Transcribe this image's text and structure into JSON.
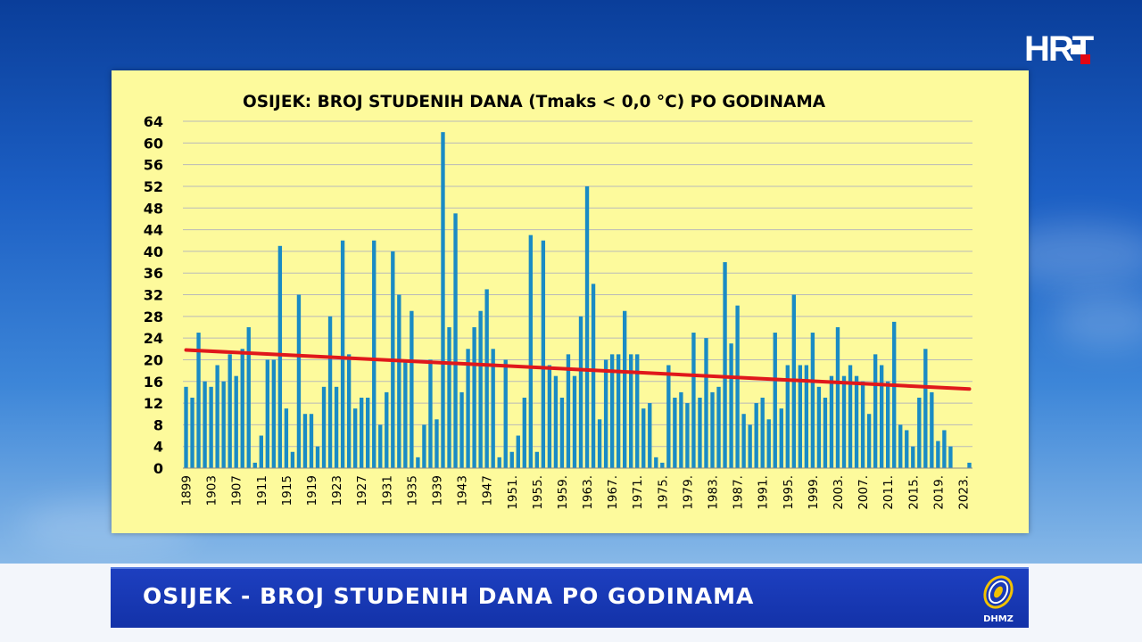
{
  "broadcaster": {
    "logo_text": "HRT"
  },
  "lower_third": {
    "caption": "OSIJEK - BROJ STUDENIH DANA PO GODINAMA",
    "partner_logo_text": "DHMZ"
  },
  "colors": {
    "bar": "#1a8bc4",
    "trend": "#e0181b",
    "panel": "#fdfa9c",
    "lower_third": "#1332a8"
  },
  "chart_data": {
    "type": "bar",
    "title": "OSIJEK: BROJ STUDENIH DANA (Tmaks < 0,0 °C) PO GODINAMA",
    "xlabel": "",
    "ylabel": "",
    "ylim": [
      0,
      64
    ],
    "yticks": [
      "0",
      "4",
      "8",
      "12",
      "16",
      "20",
      "24",
      "28",
      "32",
      "36",
      "40",
      "44",
      "48",
      "52",
      "56",
      "60",
      "64"
    ],
    "grid": true,
    "legend": "none",
    "x_first_year": 1899,
    "x_last_year": 2024,
    "xtick_labels": [
      "1899",
      "1903",
      "1907",
      "1911",
      "1915",
      "1919",
      "1923",
      "1927",
      "1931",
      "1935",
      "1939",
      "1943",
      "1947",
      "1951.",
      "1955.",
      "1959.",
      "1963.",
      "1967.",
      "1971.",
      "1975.",
      "1979.",
      "1983.",
      "1987.",
      "1991.",
      "1995.",
      "1999.",
      "2003.",
      "2007.",
      "2011.",
      "2015.",
      "2019.",
      "2023."
    ],
    "values": [
      15,
      13,
      25,
      16,
      15,
      19,
      16,
      21,
      17,
      22,
      26,
      1,
      6,
      20,
      20,
      41,
      11,
      3,
      32,
      10,
      10,
      4,
      15,
      28,
      15,
      42,
      21,
      11,
      13,
      13,
      42,
      8,
      14,
      40,
      32,
      20,
      29,
      2,
      8,
      20,
      9,
      62,
      26,
      47,
      14,
      22,
      26,
      29,
      33,
      22,
      2,
      20,
      3,
      6,
      13,
      43,
      3,
      42,
      19,
      17,
      13,
      21,
      17,
      28,
      52,
      34,
      9,
      20,
      21,
      21,
      29,
      21,
      21,
      11,
      12,
      2,
      1,
      19,
      13,
      14,
      12,
      25,
      13,
      24,
      14,
      15,
      38,
      23,
      30,
      10,
      8,
      12,
      13,
      9,
      25,
      11,
      19,
      32,
      19,
      19,
      25,
      15,
      13,
      17,
      26,
      17,
      19,
      17,
      16,
      10,
      21,
      19,
      16,
      27,
      8,
      7,
      4,
      13,
      22,
      14,
      5,
      7,
      4,
      0,
      0,
      1
    ],
    "trend": {
      "start": 21.8,
      "end": 14.6
    }
  }
}
